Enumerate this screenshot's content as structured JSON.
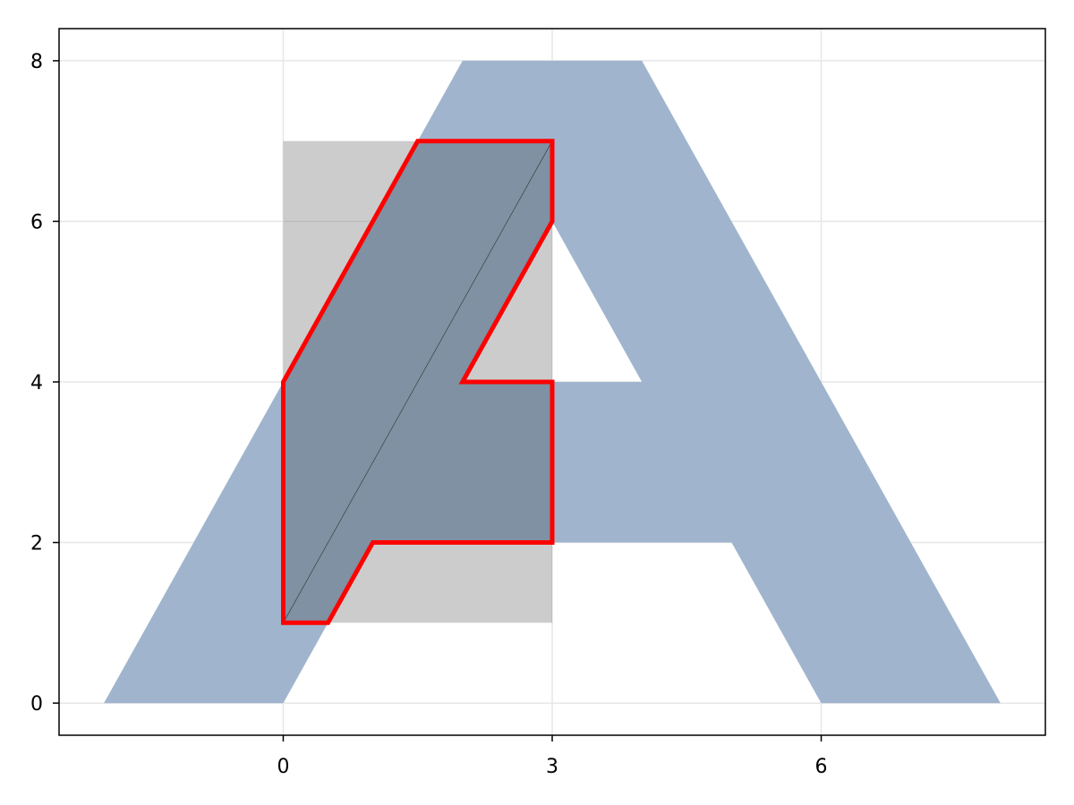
{
  "chart_data": {
    "type": "area",
    "title": "",
    "xlabel": "",
    "ylabel": "",
    "xlim": [
      -2.5,
      8.5
    ],
    "ylim": [
      -0.4,
      8.4
    ],
    "x_ticks": [
      0,
      3,
      6
    ],
    "y_ticks": [
      0,
      2,
      4,
      6,
      8
    ],
    "x_tick_labels": [
      "0",
      "3",
      "6"
    ],
    "y_tick_labels": [
      "0",
      "2",
      "4",
      "6",
      "8"
    ],
    "grid": true,
    "legend": "none",
    "series": [
      {
        "shape": "letter-A-polygon",
        "color": "#a0b5cd",
        "points": [
          [
            -2,
            0
          ],
          [
            2,
            8
          ],
          [
            4,
            8
          ],
          [
            8,
            0
          ],
          [
            6,
            0
          ],
          [
            5,
            2
          ],
          [
            3,
            2
          ],
          [
            3,
            4
          ],
          [
            4,
            4
          ],
          [
            3,
            6
          ],
          [
            2,
            4
          ],
          [
            3,
            4
          ],
          [
            3,
            2
          ],
          [
            1,
            2
          ],
          [
            0,
            0
          ]
        ]
      },
      {
        "shape": "rectangle",
        "color": "#808080",
        "opacity": 0.4,
        "points": [
          [
            0,
            1
          ],
          [
            3,
            1
          ],
          [
            3,
            7
          ],
          [
            0,
            7
          ]
        ]
      },
      {
        "shape": "clipped-intersection",
        "fill_color": "#7f91a2",
        "stroke_color": "#ff0000",
        "points": [
          [
            0,
            1
          ],
          [
            0.5,
            1
          ],
          [
            1,
            2
          ],
          [
            3,
            2
          ],
          [
            3,
            4
          ],
          [
            2,
            4
          ],
          [
            3,
            6
          ],
          [
            3,
            7
          ],
          [
            1.5,
            7
          ],
          [
            0,
            4
          ]
        ]
      }
    ],
    "diagonal_line": {
      "color": "#333333",
      "points": [
        [
          0,
          1
        ],
        [
          3,
          7
        ]
      ]
    }
  }
}
